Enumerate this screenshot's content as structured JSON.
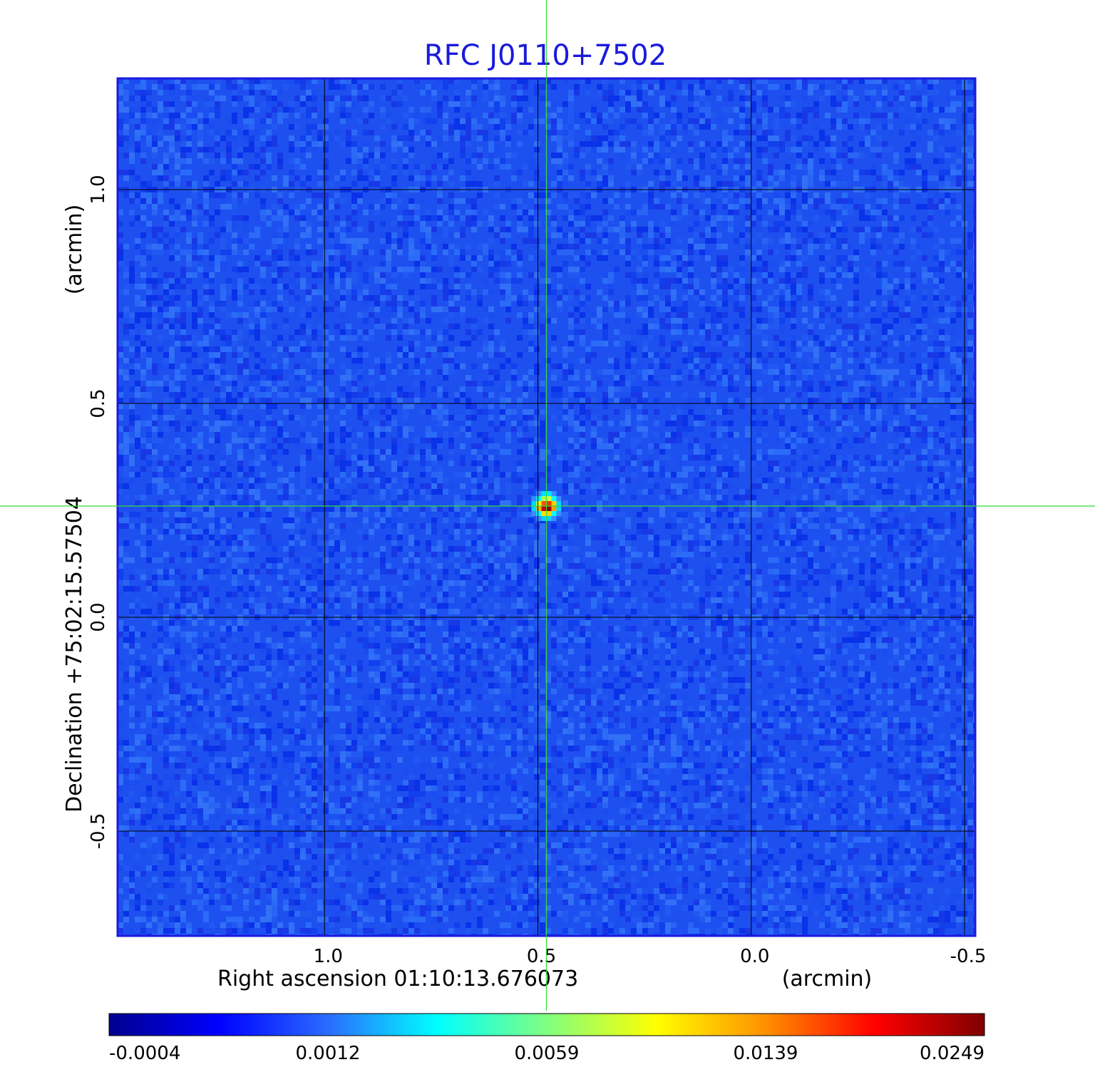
{
  "chart_data": {
    "type": "heatmap",
    "title": "RFC J0110+7502",
    "xlabel": "Right ascension  01:10:13.676073",
    "xunit": "(arcmin)",
    "ylabel": "Declination  +75:02:15.57504",
    "yunit": "(arcmin)",
    "x_ticks": [
      1.0,
      0.5,
      0.0,
      -0.5
    ],
    "x_tick_labels": [
      "1.0",
      "0.5",
      "0.0",
      "-0.5"
    ],
    "y_ticks": [
      1.0,
      0.5,
      0.0,
      -0.5
    ],
    "y_tick_labels": [
      "1.0",
      "0.5",
      "0.0",
      "-0.5"
    ],
    "xlim": [
      1.485,
      -0.525
    ],
    "ylim": [
      -0.745,
      1.26
    ],
    "grid": true,
    "crosshair": {
      "x": 0.48,
      "y": 0.26
    },
    "source_peak": {
      "x": 0.48,
      "y": 0.26,
      "value": 0.0249
    },
    "colormap": "jet",
    "colorbar": {
      "tick_labels": [
        "-0.0004",
        "0.0012",
        "0.0059",
        "0.0139",
        "0.0249"
      ],
      "min": -0.0004,
      "max": 0.0249
    },
    "colors": {
      "title": "#1a1adc",
      "background_field": "#1e50f0",
      "grid": "#000000",
      "crosshair": "#33dd33"
    }
  }
}
